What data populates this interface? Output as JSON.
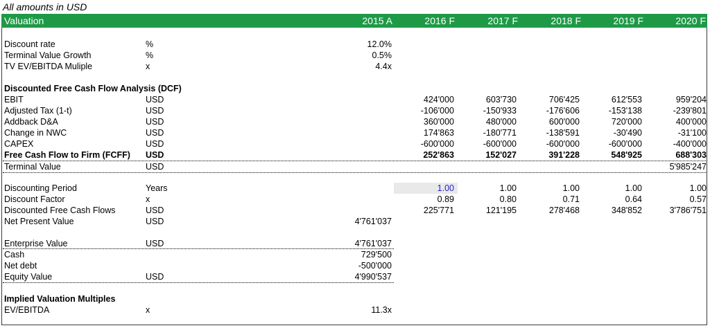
{
  "note": "All amounts in USD",
  "header": {
    "title": "Valuation",
    "columns": [
      "2015 A",
      "2016 F",
      "2017 F",
      "2018 F",
      "2019 F",
      "2020 F"
    ]
  },
  "assumptions": [
    {
      "label": "Discount rate",
      "unit": "%",
      "value": "12.0%"
    },
    {
      "label": "Terminal Value Growth",
      "unit": "%",
      "value": "0.5%"
    },
    {
      "label": "TV EV/EBITDA Muliple",
      "unit": "x",
      "value": "4.4x"
    }
  ],
  "dcf": {
    "heading": "Discounted Free Cash Flow Analysis (DCF)",
    "rows": [
      {
        "label": "EBIT",
        "unit": "USD",
        "values": [
          "424'000",
          "603'730",
          "706'425",
          "612'553",
          "959'204"
        ]
      },
      {
        "label": "Adjusted Tax (1-t)",
        "unit": "USD",
        "values": [
          "-106'000",
          "-150'933",
          "-176'606",
          "-153'138",
          "-239'801"
        ]
      },
      {
        "label": "Addback D&A",
        "unit": "USD",
        "values": [
          "360'000",
          "480'000",
          "600'000",
          "720'000",
          "400'000"
        ]
      },
      {
        "label": "Change in NWC",
        "unit": "USD",
        "values": [
          "174'863",
          "-180'771",
          "-138'591",
          "-30'490",
          "-31'100"
        ]
      },
      {
        "label": "CAPEX",
        "unit": "USD",
        "values": [
          "-600'000",
          "-600'000",
          "-600'000",
          "-600'000",
          "-400'000"
        ]
      }
    ],
    "fcff": {
      "label": "Free Cash Flow to Firm (FCFF)",
      "unit": "USD",
      "values": [
        "252'863",
        "152'027",
        "391'228",
        "548'925",
        "688'303"
      ]
    },
    "terminal": {
      "label": "Terminal Value",
      "unit": "USD",
      "value": "5'985'247"
    }
  },
  "discounting": [
    {
      "label": "Discounting Period",
      "unit": "Years",
      "values": [
        "1.00",
        "1.00",
        "1.00",
        "1.00",
        "1.00"
      ]
    },
    {
      "label": "Discount Factor",
      "unit": "x",
      "values": [
        "0.89",
        "0.80",
        "0.71",
        "0.64",
        "0.57"
      ]
    },
    {
      "label": "Discounted Free Cash Flows",
      "unit": "USD",
      "values": [
        "225'771",
        "121'195",
        "278'468",
        "348'852",
        "3'786'751"
      ]
    }
  ],
  "npv": {
    "label": "Net Present Value",
    "unit": "USD",
    "value": "4'761'037"
  },
  "bridge": [
    {
      "label": "Enterprise Value",
      "unit": "USD",
      "value": "4'761'037"
    },
    {
      "label": "Cash",
      "unit": "",
      "value": "729'500"
    },
    {
      "label": "Net debt",
      "unit": "",
      "value": "-500'000"
    },
    {
      "label": "Equity Value",
      "unit": "USD",
      "value": "4'990'537"
    }
  ],
  "multiples": {
    "heading": "Implied Valuation Multiples",
    "rows": [
      {
        "label": "EV/EBITDA",
        "unit": "x",
        "value": "11.3x"
      }
    ]
  },
  "colors": {
    "header_bg": "#1e9a47",
    "selected_cell": "#e9e9e9",
    "input_blue": "#2222cc"
  }
}
